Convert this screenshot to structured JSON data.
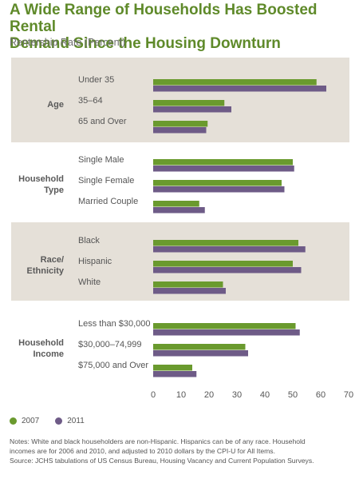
{
  "title_line1": "A Wide Range of Households Has Boosted Rental",
  "title_line2": "Demand Since the Housing Downturn",
  "subtitle": "Rentership Rate (Percent)",
  "colors": {
    "s2007": "#6a9a2e",
    "s2011": "#6e5b87",
    "band": "#e5e0d8"
  },
  "chart_data": {
    "type": "bar",
    "orientation": "horizontal",
    "ylabel": "Rentership Rate (Percent)",
    "xlim": [
      0,
      70
    ],
    "xticks": [
      "0",
      "10",
      "20",
      "30",
      "40",
      "50",
      "60",
      "70"
    ],
    "legend_position": "bottom-left",
    "series": [
      {
        "name": "2007"
      },
      {
        "name": "2011"
      }
    ],
    "groups": [
      {
        "label": "Age",
        "categories": [
          {
            "label": "Under 35",
            "values": [
              58.5,
              62.0
            ]
          },
          {
            "label": "35–64",
            "values": [
              25.5,
              28.0
            ]
          },
          {
            "label": "65 and Over",
            "values": [
              19.5,
              19.0
            ]
          }
        ]
      },
      {
        "label": "Household Type",
        "categories": [
          {
            "label": "Single Male",
            "values": [
              50.0,
              50.5
            ]
          },
          {
            "label": "Single Female",
            "values": [
              46.0,
              47.0
            ]
          },
          {
            "label": "Married Couple",
            "values": [
              16.5,
              18.5
            ]
          }
        ]
      },
      {
        "label": "Race/ Ethnicity",
        "categories": [
          {
            "label": "Black",
            "values": [
              52.0,
              54.5
            ]
          },
          {
            "label": "Hispanic",
            "values": [
              50.0,
              53.0
            ]
          },
          {
            "label": "White",
            "values": [
              25.0,
              26.0
            ]
          }
        ]
      },
      {
        "label": "Household Income",
        "categories": [
          {
            "label": "Less than $30,000",
            "values": [
              51.0,
              52.5
            ]
          },
          {
            "label": "$30,000–74,999",
            "values": [
              33.0,
              34.0
            ]
          },
          {
            "label": "$75,000 and Over",
            "values": [
              14.0,
              15.5
            ]
          }
        ]
      }
    ]
  },
  "notes": [
    "Notes: White and black householders are non-Hispanic. Hispanics can be of any race. Household",
    "incomes are for 2006 and 2010, and adjusted to 2010 dollars by the CPI-U for All Items.",
    "Source: JCHS tabulations of US Census Bureau, Housing Vacancy and Current Population Surveys."
  ]
}
